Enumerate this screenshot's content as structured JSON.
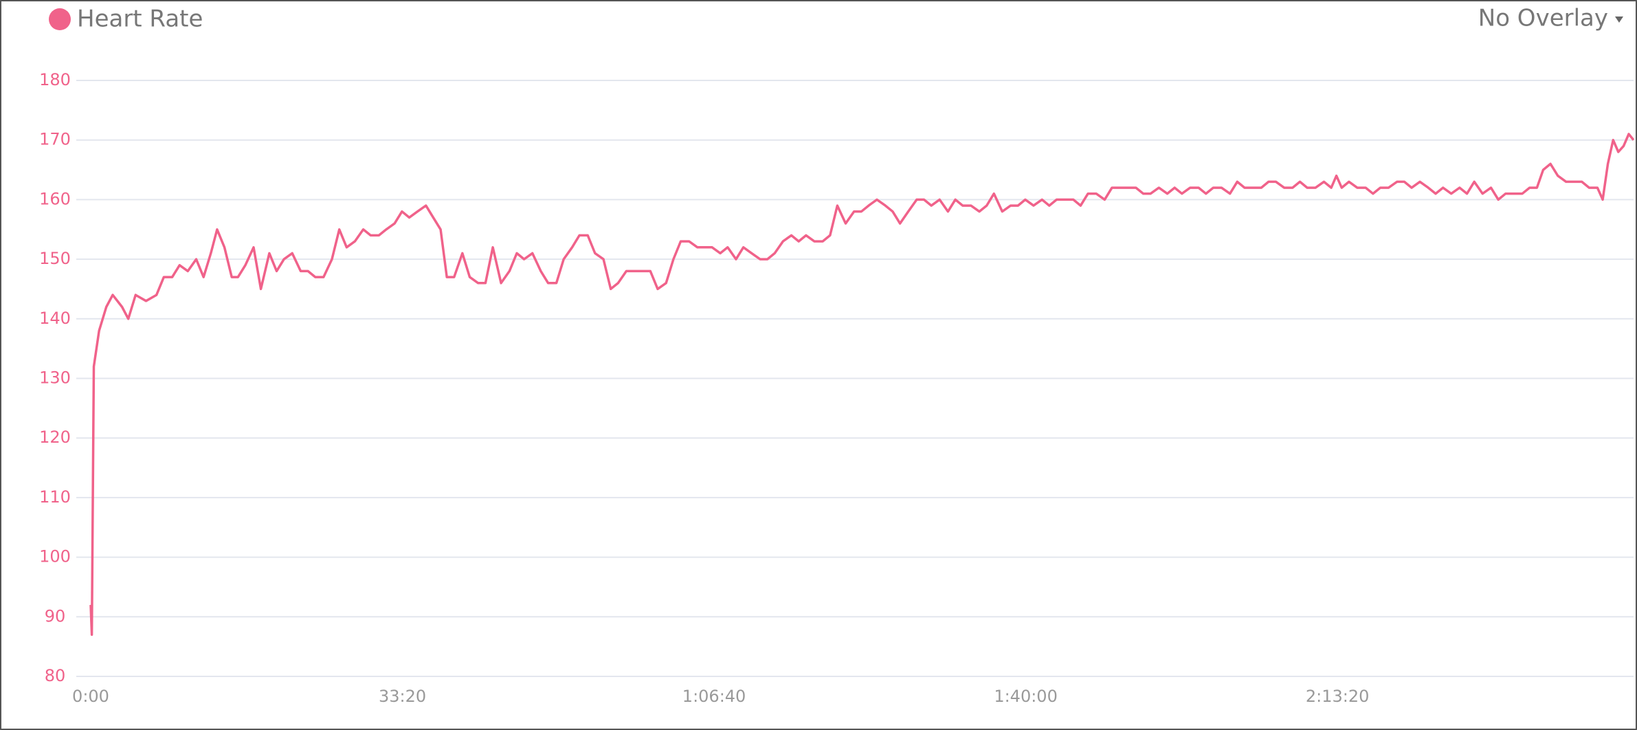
{
  "chart_data": {
    "type": "line",
    "overlay_selector": "No Overlay",
    "x": [
      0,
      7,
      20,
      54,
      100,
      141,
      201,
      241,
      288,
      355,
      422,
      469,
      523,
      570,
      623,
      677,
      724,
      771,
      811,
      858,
      905,
      945,
      992,
      1045,
      1092,
      1146,
      1193,
      1240,
      1293,
      1347,
      1394,
      1441,
      1494,
      1548,
      1595,
      1642,
      1695,
      1749,
      1796,
      1849,
      1896,
      1950,
      1997,
      2044,
      2097,
      2151,
      2198,
      2245,
      2285,
      2332,
      2385,
      2432,
      2486,
      2533,
      2580,
      2633,
      2687,
      2734,
      2781,
      2834,
      2888,
      2935,
      2988,
      3035,
      3089,
      3136,
      3189,
      3236,
      3290,
      3337,
      3384,
      3437,
      3491,
      3538,
      3591,
      3638,
      3692,
      3739,
      3786,
      3839,
      3893,
      3940,
      3987,
      4040,
      4087,
      4141,
      4188,
      4241,
      4295,
      4342,
      4389,
      4442,
      4496,
      4543,
      4590,
      4643,
      4697,
      4744,
      4791,
      4844,
      4898,
      4945,
      4992,
      5045,
      5099,
      5146,
      5193,
      5246,
      5300,
      5347,
      5394,
      5447,
      5501,
      5548,
      5595,
      5648,
      5702,
      5749,
      5796,
      5849,
      5903,
      5950,
      5997,
      6050,
      6104,
      6151,
      6198,
      6251,
      6305,
      6352,
      6399,
      6452,
      6506,
      6553,
      6600,
      6653,
      6707,
      6754,
      6801,
      6854,
      6908,
      6955,
      7002,
      7055,
      7109,
      7156,
      7203,
      7256,
      7310,
      7357,
      7404,
      7457,
      7511,
      7558,
      7605,
      7658,
      7712,
      7759,
      7806,
      7859,
      7913,
      7960,
      7993,
      8027,
      8074,
      8127,
      8181,
      8228,
      8275,
      8328,
      8382,
      8429,
      8476,
      8529,
      8583,
      8630,
      8677,
      8730,
      8784,
      8831,
      8878,
      8931,
      8985,
      9032,
      9079,
      9132,
      9186,
      9233,
      9280,
      9320,
      9367,
      9414,
      9467,
      9521,
      9568,
      9615,
      9668,
      9702,
      9735,
      9769,
      9802,
      9836,
      9869,
      9900
    ],
    "series": [
      {
        "name": "Heart Rate",
        "color": "#f0628a",
        "values": [
          92,
          87,
          132,
          138,
          142,
          144,
          142,
          140,
          144,
          143,
          144,
          147,
          147,
          149,
          148,
          150,
          147,
          151,
          155,
          152,
          147,
          147,
          149,
          152,
          145,
          151,
          148,
          150,
          151,
          148,
          148,
          147,
          147,
          150,
          155,
          152,
          153,
          155,
          154,
          154,
          155,
          156,
          158,
          157,
          158,
          159,
          157,
          155,
          147,
          147,
          151,
          147,
          146,
          146,
          152,
          146,
          148,
          151,
          150,
          151,
          148,
          146,
          146,
          150,
          152,
          154,
          154,
          151,
          150,
          145,
          146,
          148,
          148,
          148,
          148,
          145,
          146,
          150,
          153,
          153,
          152,
          152,
          152,
          151,
          152,
          150,
          152,
          151,
          150,
          150,
          151,
          153,
          154,
          153,
          154,
          153,
          153,
          154,
          159,
          156,
          158,
          158,
          159,
          160,
          159,
          158,
          156,
          158,
          160,
          160,
          159,
          160,
          158,
          160,
          159,
          159,
          158,
          159,
          161,
          158,
          159,
          159,
          160,
          159,
          160,
          159,
          160,
          160,
          160,
          159,
          161,
          161,
          160,
          162,
          162,
          162,
          162,
          161,
          161,
          162,
          161,
          162,
          161,
          162,
          162,
          161,
          162,
          162,
          161,
          163,
          162,
          162,
          162,
          163,
          163,
          162,
          162,
          163,
          162,
          162,
          163,
          162,
          164,
          162,
          163,
          162,
          162,
          161,
          162,
          162,
          163,
          163,
          162,
          163,
          162,
          161,
          162,
          161,
          162,
          161,
          163,
          161,
          162,
          160,
          161,
          161,
          161,
          162,
          162,
          165,
          166,
          164,
          163,
          163,
          163,
          162,
          162,
          160,
          166,
          170,
          168,
          169,
          171,
          170
        ]
      }
    ],
    "xlim": [
      0,
      9900
    ],
    "ylim": [
      80,
      180
    ],
    "xticks": [
      {
        "value": 0,
        "label": "0:00"
      },
      {
        "value": 2000,
        "label": "33:20"
      },
      {
        "value": 4000,
        "label": "1:06:40"
      },
      {
        "value": 6000,
        "label": "1:40:00"
      },
      {
        "value": 8000,
        "label": "2:13:20"
      }
    ],
    "yticks": [
      80,
      90,
      100,
      110,
      120,
      130,
      140,
      150,
      160,
      170,
      180
    ],
    "grid": true
  }
}
